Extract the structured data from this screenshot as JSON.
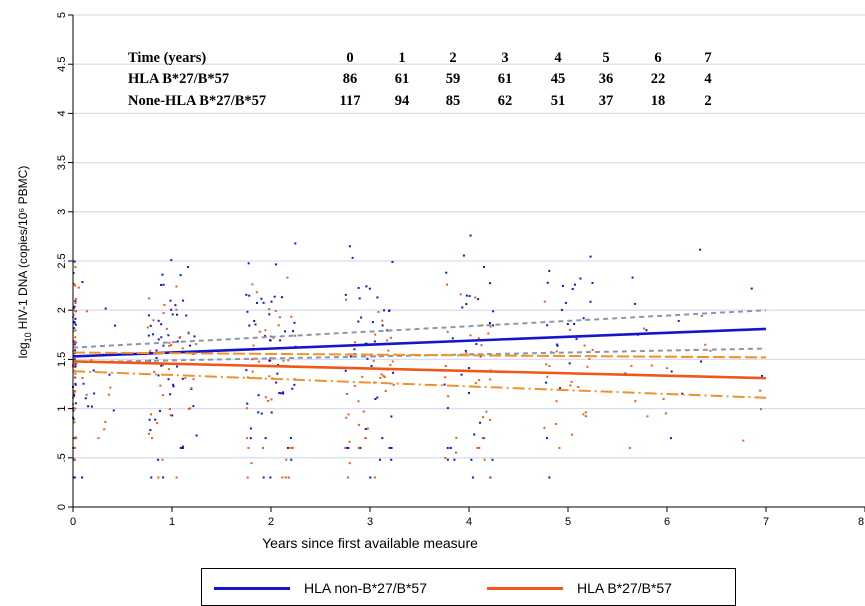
{
  "chart_data": {
    "type": "scatter",
    "xlabel": "Years since first available measure",
    "ylabel": "HIV-1 DNA (copies/10⁶ PBMC)",
    "ylabel_prefix": "log",
    "ylabel_sub": "10",
    "xlim": [
      0,
      8
    ],
    "ylim": [
      0,
      5
    ],
    "x_ticks": [
      0,
      1,
      2,
      3,
      4,
      5,
      6,
      7,
      8
    ],
    "x_tick_labels": [
      "0",
      "1",
      "2",
      "3",
      "4",
      "5",
      "6",
      "7",
      "8"
    ],
    "y_ticks": [
      0,
      0.5,
      1,
      1.5,
      2,
      2.5,
      3,
      3.5,
      4,
      4.5,
      5
    ],
    "y_tick_labels": [
      "0",
      ".5",
      "1",
      "1.5",
      "2",
      "2.5",
      "3",
      "3.5",
      "4",
      "4.5",
      "5"
    ],
    "grid": "horizontal",
    "legend_position": "bottom",
    "colors": {
      "non_b27_b57": "#1515cc",
      "b27_b57": "#f0581a",
      "ci_non_b27_b57": "#8898aa",
      "ci_b27_b57": "#f0922a",
      "grid": "#dcdcf0"
    },
    "series": [
      {
        "name": "HLA non-B*27/B*57",
        "fit": {
          "x": [
            0,
            7
          ],
          "y": [
            1.53,
            1.81
          ]
        },
        "ci_lower": {
          "x": [
            0,
            7
          ],
          "y": [
            1.47,
            1.61
          ]
        },
        "ci_upper": {
          "x": [
            0,
            7
          ],
          "y": [
            1.62,
            2.0
          ]
        }
      },
      {
        "name": "HLA B*27/B*57",
        "fit": {
          "x": [
            0,
            7
          ],
          "y": [
            1.48,
            1.31
          ]
        },
        "ci_lower": {
          "x": [
            0,
            7
          ],
          "y": [
            1.38,
            1.11
          ]
        },
        "ci_upper": {
          "x": [
            0,
            7
          ],
          "y": [
            1.57,
            1.52
          ]
        }
      }
    ],
    "table": {
      "header": "Time (years)",
      "times": [
        "0",
        "1",
        "2",
        "3",
        "4",
        "5",
        "6",
        "7"
      ],
      "rows": [
        {
          "label": "HLA B*27/B*57",
          "values": [
            "86",
            "61",
            "59",
            "61",
            "45",
            "36",
            "22",
            "4"
          ]
        },
        {
          "label": "None-HLA B*27/B*57",
          "values": [
            "117",
            "94",
            "85",
            "62",
            "51",
            "37",
            "18",
            "2"
          ]
        }
      ]
    }
  },
  "legend": {
    "items": [
      {
        "label": "HLA non-B*27/B*57"
      },
      {
        "label": "HLA B*27/B*57"
      }
    ]
  }
}
